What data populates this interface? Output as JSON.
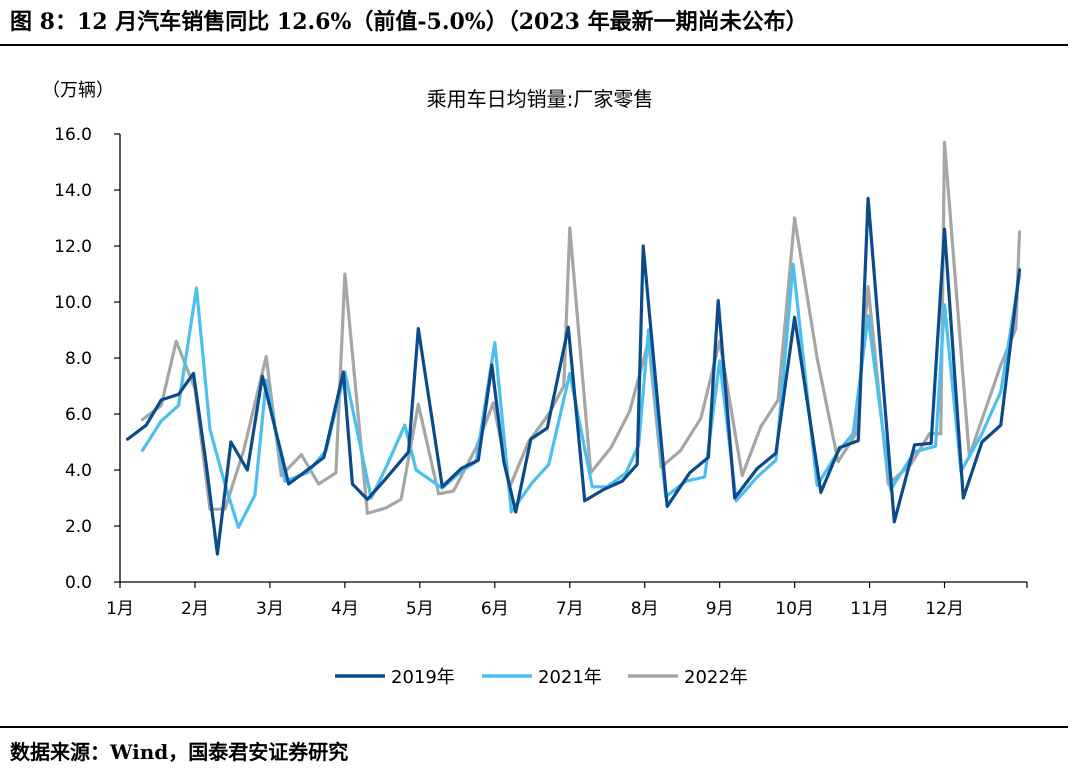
{
  "figure": {
    "title": "图 8：12 月汽车销售同比 12.6%（前值-5.0%）（2023 年最新一期尚未公布）",
    "source": "数据来源：Wind，国泰君安证券研究"
  },
  "chart_data": {
    "type": "line",
    "title": "乘用车日均销量:厂家零售",
    "unit": "（万辆）",
    "ylim": [
      0,
      16
    ],
    "yticks": [
      "0.0",
      "2.0",
      "4.0",
      "6.0",
      "8.0",
      "10.0",
      "12.0",
      "14.0",
      "16.0"
    ],
    "xlim": [
      0,
      12.1
    ],
    "xticks": [
      {
        "label": "1月",
        "x": 0
      },
      {
        "label": "2月",
        "x": 1
      },
      {
        "label": "3月",
        "x": 2
      },
      {
        "label": "4月",
        "x": 3
      },
      {
        "label": "5月",
        "x": 4
      },
      {
        "label": "6月",
        "x": 5
      },
      {
        "label": "7月",
        "x": 6
      },
      {
        "label": "8月",
        "x": 7
      },
      {
        "label": "9月",
        "x": 8
      },
      {
        "label": "10月",
        "x": 9
      },
      {
        "label": "11月",
        "x": 10
      },
      {
        "label": "12月",
        "x": 11
      }
    ],
    "grid": false,
    "legend_position": "bottom",
    "series": [
      {
        "name": "2019年",
        "color": "#0b4a8b",
        "points": [
          [
            0.1,
            5.1
          ],
          [
            0.35,
            5.6
          ],
          [
            0.55,
            6.5
          ],
          [
            0.78,
            6.7
          ],
          [
            0.98,
            7.45
          ],
          [
            1.15,
            4.2
          ],
          [
            1.3,
            1.0
          ],
          [
            1.48,
            5.0
          ],
          [
            1.7,
            4.0
          ],
          [
            1.9,
            7.35
          ],
          [
            2.25,
            3.5
          ],
          [
            2.55,
            4.1
          ],
          [
            2.72,
            4.45
          ],
          [
            2.98,
            7.5
          ],
          [
            3.1,
            3.5
          ],
          [
            3.3,
            2.95
          ],
          [
            3.55,
            3.7
          ],
          [
            3.85,
            4.65
          ],
          [
            3.98,
            9.05
          ],
          [
            4.3,
            3.4
          ],
          [
            4.55,
            4.05
          ],
          [
            4.78,
            4.35
          ],
          [
            4.96,
            7.75
          ],
          [
            5.12,
            4.3
          ],
          [
            5.28,
            2.5
          ],
          [
            5.48,
            5.1
          ],
          [
            5.7,
            5.5
          ],
          [
            5.98,
            9.1
          ],
          [
            6.2,
            2.9
          ],
          [
            6.45,
            3.3
          ],
          [
            6.7,
            3.6
          ],
          [
            6.9,
            4.2
          ],
          [
            6.98,
            12.0
          ],
          [
            7.3,
            2.7
          ],
          [
            7.6,
            3.9
          ],
          [
            7.85,
            4.45
          ],
          [
            7.98,
            10.05
          ],
          [
            8.2,
            3.0
          ],
          [
            8.5,
            4.05
          ],
          [
            8.75,
            4.6
          ],
          [
            9.0,
            9.45
          ],
          [
            9.35,
            3.2
          ],
          [
            9.6,
            4.8
          ],
          [
            9.85,
            5.05
          ],
          [
            9.98,
            13.7
          ],
          [
            10.33,
            2.15
          ],
          [
            10.6,
            4.9
          ],
          [
            10.82,
            4.95
          ],
          [
            11.0,
            12.6
          ],
          [
            11.25,
            3.0
          ],
          [
            11.5,
            5.0
          ],
          [
            11.75,
            5.6
          ],
          [
            12.0,
            11.15
          ]
        ]
      },
      {
        "name": "2021年",
        "color": "#4bbfee",
        "points": [
          [
            0.3,
            4.7
          ],
          [
            0.55,
            5.75
          ],
          [
            0.78,
            6.3
          ],
          [
            1.02,
            10.5
          ],
          [
            1.2,
            5.45
          ],
          [
            1.4,
            3.5
          ],
          [
            1.58,
            1.95
          ],
          [
            1.8,
            3.1
          ],
          [
            1.95,
            7.2
          ],
          [
            2.2,
            3.6
          ],
          [
            2.5,
            3.9
          ],
          [
            2.75,
            4.7
          ],
          [
            3.0,
            7.5
          ],
          [
            3.35,
            3.0
          ],
          [
            3.55,
            4.1
          ],
          [
            3.8,
            5.6
          ],
          [
            3.95,
            4.0
          ],
          [
            4.3,
            3.35
          ],
          [
            4.55,
            3.95
          ],
          [
            4.75,
            4.3
          ],
          [
            5.0,
            8.55
          ],
          [
            5.22,
            2.5
          ],
          [
            5.5,
            3.55
          ],
          [
            5.72,
            4.2
          ],
          [
            6.0,
            7.45
          ],
          [
            6.3,
            3.4
          ],
          [
            6.5,
            3.4
          ],
          [
            6.75,
            3.9
          ],
          [
            6.92,
            4.9
          ],
          [
            7.05,
            9.0
          ],
          [
            7.28,
            3.05
          ],
          [
            7.55,
            3.6
          ],
          [
            7.8,
            3.75
          ],
          [
            8.0,
            7.9
          ],
          [
            8.22,
            2.9
          ],
          [
            8.5,
            3.75
          ],
          [
            8.75,
            4.35
          ],
          [
            8.98,
            11.35
          ],
          [
            9.3,
            3.45
          ],
          [
            9.58,
            4.65
          ],
          [
            9.78,
            5.3
          ],
          [
            9.98,
            9.5
          ],
          [
            10.28,
            3.3
          ],
          [
            10.6,
            4.65
          ],
          [
            10.88,
            4.85
          ],
          [
            11.0,
            9.9
          ],
          [
            11.22,
            3.95
          ],
          [
            11.5,
            5.3
          ],
          [
            11.75,
            6.8
          ],
          [
            12.0,
            10.95
          ]
        ]
      },
      {
        "name": "2022年",
        "color": "#a6a6a6",
        "points": [
          [
            0.3,
            5.8
          ],
          [
            0.55,
            6.3
          ],
          [
            0.75,
            8.6
          ],
          [
            1.0,
            6.9
          ],
          [
            1.2,
            2.6
          ],
          [
            1.4,
            2.6
          ],
          [
            1.65,
            4.7
          ],
          [
            1.95,
            8.05
          ],
          [
            2.15,
            3.8
          ],
          [
            2.42,
            4.55
          ],
          [
            2.65,
            3.5
          ],
          [
            2.88,
            3.9
          ],
          [
            3.0,
            11.0
          ],
          [
            3.3,
            2.45
          ],
          [
            3.55,
            2.65
          ],
          [
            3.75,
            2.95
          ],
          [
            3.98,
            6.35
          ],
          [
            4.25,
            3.15
          ],
          [
            4.45,
            3.25
          ],
          [
            4.75,
            4.8
          ],
          [
            4.98,
            6.4
          ],
          [
            5.2,
            3.4
          ],
          [
            5.45,
            5.0
          ],
          [
            5.72,
            6.0
          ],
          [
            5.92,
            7.0
          ],
          [
            6.0,
            12.65
          ],
          [
            6.28,
            3.9
          ],
          [
            6.55,
            4.8
          ],
          [
            6.8,
            6.1
          ],
          [
            7.05,
            8.6
          ],
          [
            7.22,
            4.1
          ],
          [
            7.48,
            4.7
          ],
          [
            7.75,
            5.85
          ],
          [
            8.0,
            8.6
          ],
          [
            8.3,
            3.8
          ],
          [
            8.55,
            5.55
          ],
          [
            8.78,
            6.5
          ],
          [
            9.0,
            13.0
          ],
          [
            9.3,
            8.0
          ],
          [
            9.58,
            4.3
          ],
          [
            9.82,
            5.3
          ],
          [
            9.98,
            10.55
          ],
          [
            10.25,
            3.5
          ],
          [
            10.55,
            4.2
          ],
          [
            10.8,
            5.3
          ],
          [
            10.95,
            5.3
          ],
          [
            11.0,
            15.7
          ],
          [
            11.33,
            4.5
          ],
          [
            11.55,
            6.2
          ],
          [
            11.75,
            7.75
          ],
          [
            11.95,
            9.05
          ],
          [
            12.0,
            12.5
          ]
        ]
      }
    ]
  }
}
